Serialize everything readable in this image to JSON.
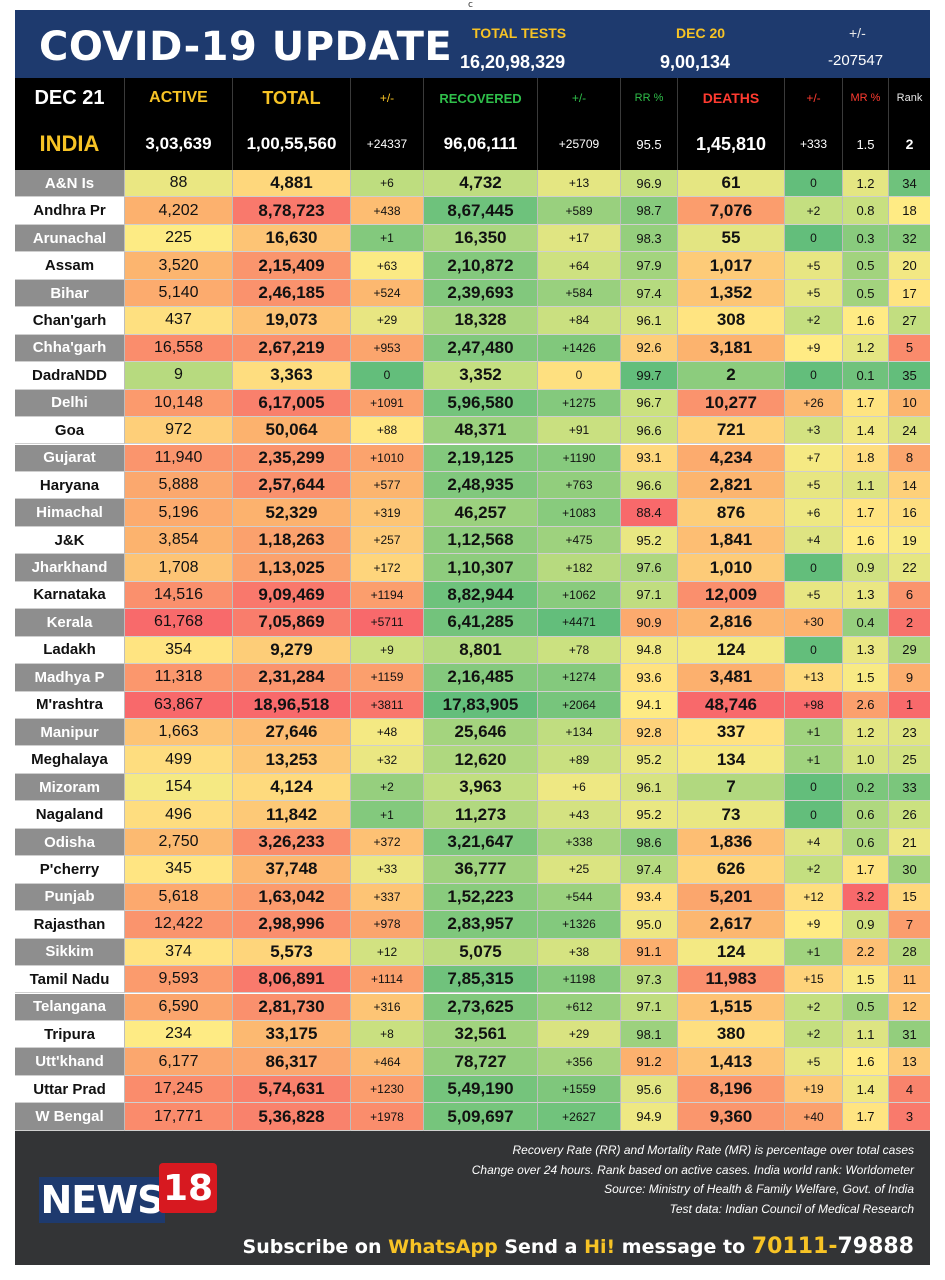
{
  "top_mark": "c",
  "header": {
    "title": "COVID-19 UPDATE",
    "total_tests_label": "TOTAL TESTS",
    "total_tests_value": "16,20,98,329",
    "date_label": "DEC 20",
    "date_value": "9,00,134",
    "pm_label": "+/-",
    "pm_value": "-207547"
  },
  "columns": {
    "date": "DEC 21",
    "active": "ACTIVE",
    "total": "TOTAL",
    "total_change": "+/-",
    "recovered": "RECOVERED",
    "recovered_change": "+/-",
    "rr": "RR %",
    "deaths": "DEATHS",
    "deaths_change": "+/-",
    "mr": "MR %",
    "rank": "Rank"
  },
  "india": {
    "state": "INDIA",
    "active": "3,03,639",
    "total": "1,00,55,560",
    "total_change": "+24337",
    "recovered": "96,06,111",
    "recovered_change": "+25709",
    "rr": "95.5",
    "deaths": "1,45,810",
    "deaths_change": "+333",
    "mr": "1.5",
    "rank": "2"
  },
  "rows": [
    {
      "state": "A&N Is",
      "active": "88",
      "total": "4,881",
      "total_change": "+6",
      "recovered": "4,732",
      "recovered_change": "+13",
      "rr": "96.9",
      "deaths": "61",
      "deaths_change": "0",
      "mr": "1.2",
      "rank": "34"
    },
    {
      "state": "Andhra Pr",
      "active": "4,202",
      "total": "8,78,723",
      "total_change": "+438",
      "recovered": "8,67,445",
      "recovered_change": "+589",
      "rr": "98.7",
      "deaths": "7,076",
      "deaths_change": "+2",
      "mr": "0.8",
      "rank": "18"
    },
    {
      "state": "Arunachal",
      "active": "225",
      "total": "16,630",
      "total_change": "+1",
      "recovered": "16,350",
      "recovered_change": "+17",
      "rr": "98.3",
      "deaths": "55",
      "deaths_change": "0",
      "mr": "0.3",
      "rank": "32"
    },
    {
      "state": "Assam",
      "active": "3,520",
      "total": "2,15,409",
      "total_change": "+63",
      "recovered": "2,10,872",
      "recovered_change": "+64",
      "rr": "97.9",
      "deaths": "1,017",
      "deaths_change": "+5",
      "mr": "0.5",
      "rank": "20"
    },
    {
      "state": "Bihar",
      "active": "5,140",
      "total": "2,46,185",
      "total_change": "+524",
      "recovered": "2,39,693",
      "recovered_change": "+584",
      "rr": "97.4",
      "deaths": "1,352",
      "deaths_change": "+5",
      "mr": "0.5",
      "rank": "17"
    },
    {
      "state": "Chan'garh",
      "active": "437",
      "total": "19,073",
      "total_change": "+29",
      "recovered": "18,328",
      "recovered_change": "+84",
      "rr": "96.1",
      "deaths": "308",
      "deaths_change": "+2",
      "mr": "1.6",
      "rank": "27"
    },
    {
      "state": "Chha'garh",
      "active": "16,558",
      "total": "2,67,219",
      "total_change": "+953",
      "recovered": "2,47,480",
      "recovered_change": "+1426",
      "rr": "92.6",
      "deaths": "3,181",
      "deaths_change": "+9",
      "mr": "1.2",
      "rank": "5"
    },
    {
      "state": "DadraNDD",
      "active": "9",
      "total": "3,363",
      "total_change": "0",
      "recovered": "3,352",
      "recovered_change": "0",
      "rr": "99.7",
      "deaths": "2",
      "deaths_change": "0",
      "mr": "0.1",
      "rank": "35"
    },
    {
      "state": "Delhi",
      "active": "10,148",
      "total": "6,17,005",
      "total_change": "+1091",
      "recovered": "5,96,580",
      "recovered_change": "+1275",
      "rr": "96.7",
      "deaths": "10,277",
      "deaths_change": "+26",
      "mr": "1.7",
      "rank": "10"
    },
    {
      "state": "Goa",
      "active": "972",
      "total": "50,064",
      "total_change": "+88",
      "recovered": "48,371",
      "recovered_change": "+91",
      "rr": "96.6",
      "deaths": "721",
      "deaths_change": "+3",
      "mr": "1.4",
      "rank": "24"
    },
    {
      "state": "Gujarat",
      "active": "11,940",
      "total": "2,35,299",
      "total_change": "+1010",
      "recovered": "2,19,125",
      "recovered_change": "+1190",
      "rr": "93.1",
      "deaths": "4,234",
      "deaths_change": "+7",
      "mr": "1.8",
      "rank": "8"
    },
    {
      "state": "Haryana",
      "active": "5,888",
      "total": "2,57,644",
      "total_change": "+577",
      "recovered": "2,48,935",
      "recovered_change": "+763",
      "rr": "96.6",
      "deaths": "2,821",
      "deaths_change": "+5",
      "mr": "1.1",
      "rank": "14"
    },
    {
      "state": "Himachal",
      "active": "5,196",
      "total": "52,329",
      "total_change": "+319",
      "recovered": "46,257",
      "recovered_change": "+1083",
      "rr": "88.4",
      "deaths": "876",
      "deaths_change": "+6",
      "mr": "1.7",
      "rank": "16"
    },
    {
      "state": "J&K",
      "active": "3,854",
      "total": "1,18,263",
      "total_change": "+257",
      "recovered": "1,12,568",
      "recovered_change": "+475",
      "rr": "95.2",
      "deaths": "1,841",
      "deaths_change": "+4",
      "mr": "1.6",
      "rank": "19"
    },
    {
      "state": "Jharkhand",
      "active": "1,708",
      "total": "1,13,025",
      "total_change": "+172",
      "recovered": "1,10,307",
      "recovered_change": "+182",
      "rr": "97.6",
      "deaths": "1,010",
      "deaths_change": "0",
      "mr": "0.9",
      "rank": "22"
    },
    {
      "state": "Karnataka",
      "active": "14,516",
      "total": "9,09,469",
      "total_change": "+1194",
      "recovered": "8,82,944",
      "recovered_change": "+1062",
      "rr": "97.1",
      "deaths": "12,009",
      "deaths_change": "+5",
      "mr": "1.3",
      "rank": "6"
    },
    {
      "state": "Kerala",
      "active": "61,768",
      "total": "7,05,869",
      "total_change": "+5711",
      "recovered": "6,41,285",
      "recovered_change": "+4471",
      "rr": "90.9",
      "deaths": "2,816",
      "deaths_change": "+30",
      "mr": "0.4",
      "rank": "2"
    },
    {
      "state": "Ladakh",
      "active": "354",
      "total": "9,279",
      "total_change": "+9",
      "recovered": "8,801",
      "recovered_change": "+78",
      "rr": "94.8",
      "deaths": "124",
      "deaths_change": "0",
      "mr": "1.3",
      "rank": "29"
    },
    {
      "state": "Madhya P",
      "active": "11,318",
      "total": "2,31,284",
      "total_change": "+1159",
      "recovered": "2,16,485",
      "recovered_change": "+1274",
      "rr": "93.6",
      "deaths": "3,481",
      "deaths_change": "+13",
      "mr": "1.5",
      "rank": "9"
    },
    {
      "state": "M'rashtra",
      "active": "63,867",
      "total": "18,96,518",
      "total_change": "+3811",
      "recovered": "17,83,905",
      "recovered_change": "+2064",
      "rr": "94.1",
      "deaths": "48,746",
      "deaths_change": "+98",
      "mr": "2.6",
      "rank": "1"
    },
    {
      "state": "Manipur",
      "active": "1,663",
      "total": "27,646",
      "total_change": "+48",
      "recovered": "25,646",
      "recovered_change": "+134",
      "rr": "92.8",
      "deaths": "337",
      "deaths_change": "+1",
      "mr": "1.2",
      "rank": "23"
    },
    {
      "state": "Meghalaya",
      "active": "499",
      "total": "13,253",
      "total_change": "+32",
      "recovered": "12,620",
      "recovered_change": "+89",
      "rr": "95.2",
      "deaths": "134",
      "deaths_change": "+1",
      "mr": "1.0",
      "rank": "25"
    },
    {
      "state": "Mizoram",
      "active": "154",
      "total": "4,124",
      "total_change": "+2",
      "recovered": "3,963",
      "recovered_change": "+6",
      "rr": "96.1",
      "deaths": "7",
      "deaths_change": "0",
      "mr": "0.2",
      "rank": "33"
    },
    {
      "state": "Nagaland",
      "active": "496",
      "total": "11,842",
      "total_change": "+1",
      "recovered": "11,273",
      "recovered_change": "+43",
      "rr": "95.2",
      "deaths": "73",
      "deaths_change": "0",
      "mr": "0.6",
      "rank": "26"
    },
    {
      "state": "Odisha",
      "active": "2,750",
      "total": "3,26,233",
      "total_change": "+372",
      "recovered": "3,21,647",
      "recovered_change": "+338",
      "rr": "98.6",
      "deaths": "1,836",
      "deaths_change": "+4",
      "mr": "0.6",
      "rank": "21"
    },
    {
      "state": "P'cherry",
      "active": "345",
      "total": "37,748",
      "total_change": "+33",
      "recovered": "36,777",
      "recovered_change": "+25",
      "rr": "97.4",
      "deaths": "626",
      "deaths_change": "+2",
      "mr": "1.7",
      "rank": "30"
    },
    {
      "state": "Punjab",
      "active": "5,618",
      "total": "1,63,042",
      "total_change": "+337",
      "recovered": "1,52,223",
      "recovered_change": "+544",
      "rr": "93.4",
      "deaths": "5,201",
      "deaths_change": "+12",
      "mr": "3.2",
      "rank": "15"
    },
    {
      "state": "Rajasthan",
      "active": "12,422",
      "total": "2,98,996",
      "total_change": "+978",
      "recovered": "2,83,957",
      "recovered_change": "+1326",
      "rr": "95.0",
      "deaths": "2,617",
      "deaths_change": "+9",
      "mr": "0.9",
      "rank": "7"
    },
    {
      "state": "Sikkim",
      "active": "374",
      "total": "5,573",
      "total_change": "+12",
      "recovered": "5,075",
      "recovered_change": "+38",
      "rr": "91.1",
      "deaths": "124",
      "deaths_change": "+1",
      "mr": "2.2",
      "rank": "28"
    },
    {
      "state": "Tamil Nadu",
      "active": "9,593",
      "total": "8,06,891",
      "total_change": "+1114",
      "recovered": "7,85,315",
      "recovered_change": "+1198",
      "rr": "97.3",
      "deaths": "11,983",
      "deaths_change": "+15",
      "mr": "1.5",
      "rank": "11"
    },
    {
      "state": "Telangana",
      "active": "6,590",
      "total": "2,81,730",
      "total_change": "+316",
      "recovered": "2,73,625",
      "recovered_change": "+612",
      "rr": "97.1",
      "deaths": "1,515",
      "deaths_change": "+2",
      "mr": "0.5",
      "rank": "12"
    },
    {
      "state": "Tripura",
      "active": "234",
      "total": "33,175",
      "total_change": "+8",
      "recovered": "32,561",
      "recovered_change": "+29",
      "rr": "98.1",
      "deaths": "380",
      "deaths_change": "+2",
      "mr": "1.1",
      "rank": "31"
    },
    {
      "state": "Utt'khand",
      "active": "6,177",
      "total": "86,317",
      "total_change": "+464",
      "recovered": "78,727",
      "recovered_change": "+356",
      "rr": "91.2",
      "deaths": "1,413",
      "deaths_change": "+5",
      "mr": "1.6",
      "rank": "13"
    },
    {
      "state": "Uttar Prad",
      "active": "17,245",
      "total": "5,74,631",
      "total_change": "+1230",
      "recovered": "5,49,190",
      "recovered_change": "+1559",
      "rr": "95.6",
      "deaths": "8,196",
      "deaths_change": "+19",
      "mr": "1.4",
      "rank": "4"
    },
    {
      "state": "W Bengal",
      "active": "17,771",
      "total": "5,36,828",
      "total_change": "+1978",
      "recovered": "5,09,697",
      "recovered_change": "+2627",
      "rr": "94.9",
      "deaths": "9,360",
      "deaths_change": "+40",
      "mr": "1.7",
      "rank": "3"
    }
  ],
  "footer": {
    "notes": [
      "Recovery Rate (RR) and Mortality Rate (MR) is percentage over total cases",
      "Change over 24 hours. Rank based on active cases. India world rank: Worldometer",
      "Source: Ministry of Health & Family Welfare, Govt. of India",
      "Test data: Indian Council of Medical Research"
    ],
    "logo_news": "NEWS",
    "logo_num": "18",
    "subscribe_1": "Subscribe on ",
    "subscribe_2": "WhatsApp",
    "subscribe_3": " Send a ",
    "subscribe_4": "Hi!",
    "subscribe_5": " message to ",
    "subscribe_6": "70111-",
    "subscribe_7": "79888"
  },
  "colors": {
    "header_bg": "#1e3a6e",
    "accent_yellow": "#f7c325",
    "recovered_green": "#2fbf4a",
    "deaths_red": "#ff3b30",
    "state_grey": "#8e8e8e",
    "footer_bg": "#333436",
    "logo_red": "#d71920"
  }
}
